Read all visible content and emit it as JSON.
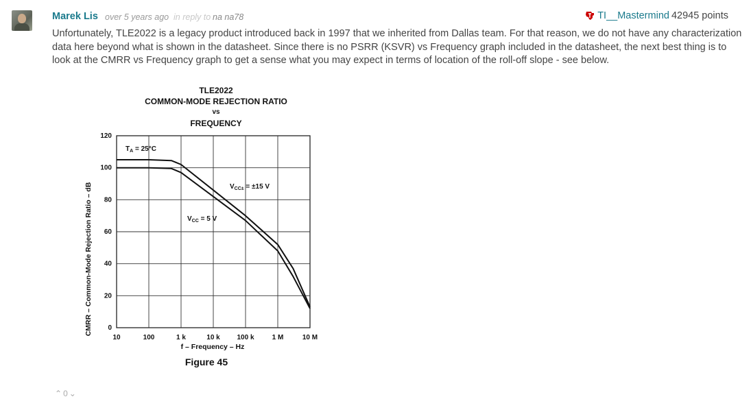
{
  "comment": {
    "author": "Marek Lis",
    "time": "over 5 years ago",
    "reply_prefix": "in reply to",
    "reply_to": "na na78",
    "reputation_user": "TI__Mastermind",
    "reputation_points": "42945 points",
    "body": "Unfortunately, TLE2022 is a legacy product introduced back in 1997 that we inherited from Dallas team.  For that reason, we do not have any characterization data here beyond what is shown in the datasheet.  Since there is no PSRR (KSVR) vs Frequency graph included in the datasheet, the next best thing is to look at the CMRR vs Frequency graph to get a sense what you may expect in terms of location of the roll-off slope - see below.",
    "votes": "0"
  },
  "icons": {
    "ti_logo": "ti-logo-icon",
    "up": "chevron-up-icon",
    "down": "chevron-down-icon"
  },
  "colors": {
    "link": "#1a7a8c",
    "ti_red": "#cc0000"
  },
  "figure": {
    "title_lines": [
      "TLE2022",
      "COMMON-MODE REJECTION RATIO",
      "vs",
      "FREQUENCY"
    ],
    "caption": "Figure 45"
  },
  "chart_data": {
    "type": "line",
    "title": "TLE2022 COMMON-MODE REJECTION RATIO vs FREQUENCY",
    "xlabel": "f – Frequency – Hz",
    "ylabel": "CMRR – Common-Mode Rejection Ratio – dB",
    "x_scale": "log",
    "xlim": [
      10,
      10000000
    ],
    "ylim": [
      0,
      120
    ],
    "x_ticks": [
      "10",
      "100",
      "1 k",
      "10 k",
      "100 k",
      "1 M",
      "10 M"
    ],
    "y_ticks": [
      "0",
      "20",
      "40",
      "60",
      "80",
      "100",
      "120"
    ],
    "grid": true,
    "annotations": [
      "TA = 25°C",
      "VCC± = ±15 V",
      "VCC = 5 V"
    ],
    "series": [
      {
        "name": "VCC± = ±15 V",
        "x": [
          10,
          100,
          500,
          1000,
          10000,
          100000,
          1000000,
          3000000,
          10000000
        ],
        "y": [
          105,
          105,
          104.5,
          102,
          86,
          70,
          52,
          37,
          13
        ]
      },
      {
        "name": "VCC = 5 V",
        "x": [
          10,
          100,
          500,
          1000,
          10000,
          100000,
          1000000,
          3000000,
          10000000
        ],
        "y": [
          100,
          100,
          99.5,
          97,
          82,
          67,
          48,
          32,
          12
        ]
      }
    ]
  }
}
